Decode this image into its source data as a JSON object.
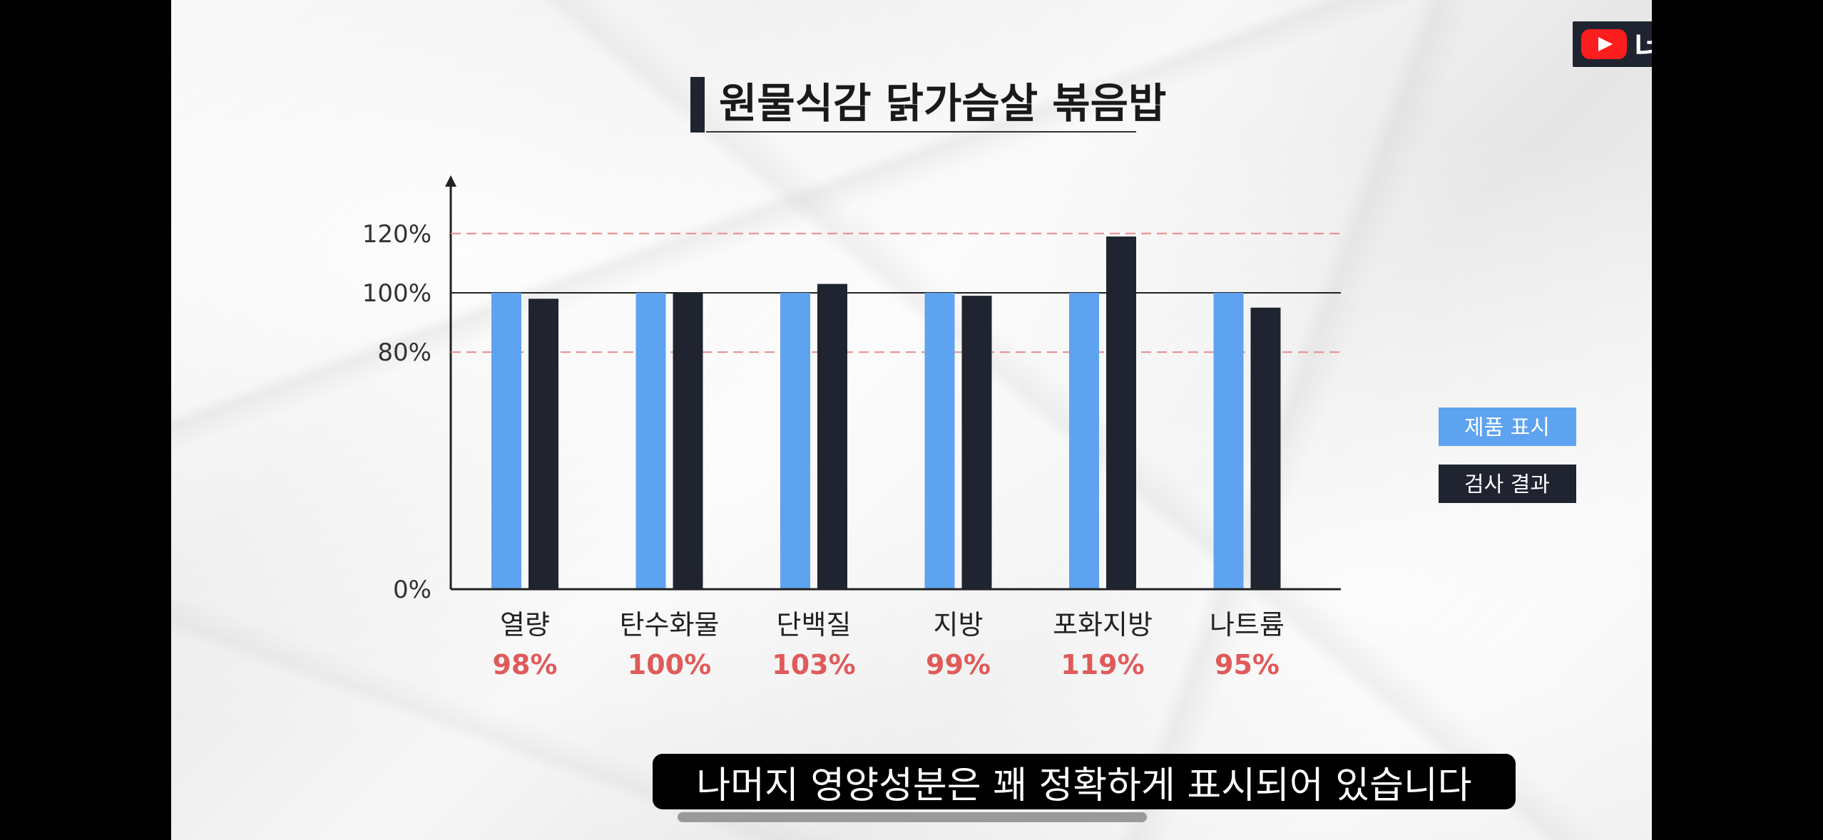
{
  "channel": {
    "name": "너구리다고",
    "icon": "youtube-play-icon"
  },
  "subtitle": "나머지 영양성분은 꽤 정확하게 표시되어 있습니다",
  "colors": {
    "label_bar": "#5ea3f0",
    "test_bar": "#1f2430",
    "percent_text": "#e05a5a",
    "guide_line": "#e88a8a"
  },
  "chart_data": {
    "type": "bar",
    "title": "원물식감 닭가슴살 볶음밥",
    "categories": [
      "열량",
      "탄수화물",
      "단백질",
      "지방",
      "포화지방",
      "나트륨"
    ],
    "percent_labels": [
      "98%",
      "100%",
      "103%",
      "99%",
      "119%",
      "95%"
    ],
    "series": [
      {
        "name": "제품 표시",
        "values": [
          100,
          100,
          100,
          100,
          100,
          100
        ]
      },
      {
        "name": "검사 결과",
        "values": [
          98,
          100,
          103,
          99,
          119,
          95
        ]
      }
    ],
    "yticks": [
      0,
      80,
      100,
      120
    ],
    "ytick_labels": [
      "0%",
      "80%",
      "100%",
      "120%"
    ],
    "ylim": [
      0,
      140
    ],
    "reference_lines": [
      80,
      100,
      120
    ],
    "legend_position": "right"
  }
}
